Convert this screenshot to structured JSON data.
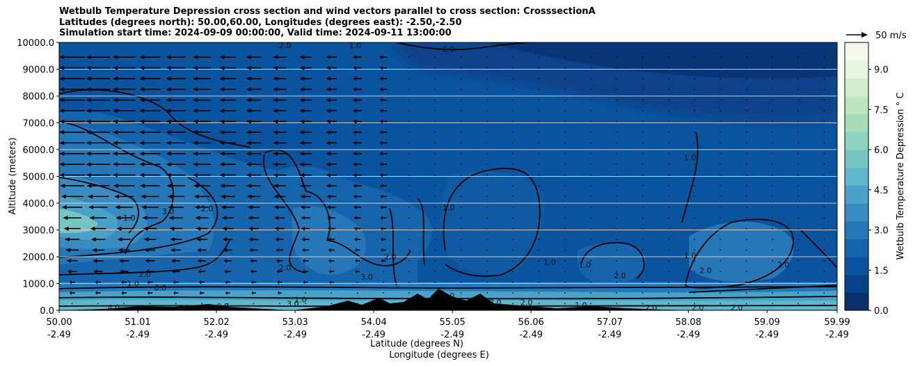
{
  "title": {
    "line1": "Wetbulb Temperature Depression cross section and wind vectors parallel to cross section: CrosssectionA",
    "line2": "Latitudes (degrees north): 50.00,60.00, Longitudes (degrees east): -2.50,-2.50",
    "line3": "Simulation start time: 2024-09-09 00:00:00, Valid time: 2024-09-11 13:00:00"
  },
  "quiver_key": {
    "label": "50 m/s"
  },
  "colorbar": {
    "label": "Wetbulb Temperature Depression ° C",
    "ticks": [
      "0.0",
      "1.5",
      "3.0",
      "4.5",
      "6.0",
      "7.5",
      "9.0"
    ],
    "range": [
      0,
      10
    ],
    "colors_low_to_high": [
      "#08306b",
      "#08438a",
      "#0a539e",
      "#1664ab",
      "#2677b8",
      "#3a8bc2",
      "#4ba2c9",
      "#60b6cb",
      "#75c5c3",
      "#8dd3be",
      "#a6dcb6",
      "#bde5be",
      "#d3eece",
      "#e5f5df",
      "#f5fbec"
    ]
  },
  "chart_data": {
    "type": "heatmap",
    "subtype": "filled contour cross-section with wind vectors and contour lines",
    "title": "Wetbulb Temperature Depression cross section and wind vectors parallel to cross section: CrosssectionA",
    "xlabel_line1": "Latitude (degrees N)",
    "xlabel_line2": "Longitude (degrees E)",
    "ylabel": "Altitude (meters)",
    "x_ticks_lat": [
      "50.00",
      "51.01",
      "52.02",
      "53.03",
      "54.04",
      "55.05",
      "56.06",
      "57.07",
      "58.08",
      "59.09",
      "59.99"
    ],
    "x_ticks_lon": [
      "-2.49",
      "-2.49",
      "-2.49",
      "-2.49",
      "-2.49",
      "-2.49",
      "-2.49",
      "-2.49",
      "-2.49",
      "-2.49",
      "-2.49"
    ],
    "y_ticks": [
      "0.0",
      "1000.0",
      "2000.0",
      "3000.0",
      "4000.0",
      "5000.0",
      "6000.0",
      "7000.0",
      "8000.0",
      "9000.0",
      "10000.0"
    ],
    "xlim": [
      50.0,
      59.99
    ],
    "ylim": [
      0,
      10000
    ],
    "grid": "horizontal lines",
    "colorbar_range": [
      0,
      10
    ],
    "contour_levels_labeled": [
      "1.0",
      "2.0",
      "3.0",
      "4.0"
    ],
    "contour_labels": [
      {
        "text": "2.0",
        "lat": 52.9,
        "alt": 9900
      },
      {
        "text": "1.0",
        "lat": 53.8,
        "alt": 9900
      },
      {
        "text": "1.0",
        "lat": 55.0,
        "alt": 9750
      },
      {
        "text": "1.0",
        "lat": 58.1,
        "alt": 5700
      },
      {
        "text": "1.0",
        "lat": 55.0,
        "alt": 3850
      },
      {
        "text": "3.0",
        "lat": 51.4,
        "alt": 3700
      },
      {
        "text": "2.0",
        "lat": 51.9,
        "alt": 3800
      },
      {
        "text": "1.0",
        "lat": 50.9,
        "alt": 3450
      },
      {
        "text": "2.0",
        "lat": 52.9,
        "alt": 1600
      },
      {
        "text": "2.0",
        "lat": 54.25,
        "alt": 2000
      },
      {
        "text": "3.0",
        "lat": 53.95,
        "alt": 1250
      },
      {
        "text": "2.0",
        "lat": 51.1,
        "alt": 1350
      },
      {
        "text": "1.0",
        "lat": 50.95,
        "alt": 1000
      },
      {
        "text": "0.0",
        "lat": 51.3,
        "alt": 850
      },
      {
        "text": "1.0",
        "lat": 56.3,
        "alt": 1800
      },
      {
        "text": "1.0",
        "lat": 56.75,
        "alt": 1700
      },
      {
        "text": "2.0",
        "lat": 57.2,
        "alt": 1300
      },
      {
        "text": "1.0",
        "lat": 58.1,
        "alt": 2050
      },
      {
        "text": "2.0",
        "lat": 58.3,
        "alt": 1500
      },
      {
        "text": "2.0",
        "lat": 59.3,
        "alt": 1700
      },
      {
        "text": "1.0",
        "lat": 53.1,
        "alt": 400
      },
      {
        "text": "3.0",
        "lat": 53.0,
        "alt": 250
      },
      {
        "text": "1.0",
        "lat": 55.0,
        "alt": 550
      },
      {
        "text": "2.0",
        "lat": 55.6,
        "alt": 300
      },
      {
        "text": "2.0",
        "lat": 56.0,
        "alt": 300
      },
      {
        "text": "1.0",
        "lat": 56.7,
        "alt": 200
      },
      {
        "text": "2.0",
        "lat": 57.6,
        "alt": 100
      },
      {
        "text": "2.0",
        "lat": 58.2,
        "alt": 100
      },
      {
        "text": "2.0",
        "lat": 58.7,
        "alt": 100
      },
      {
        "text": "4.0",
        "lat": 50.7,
        "alt": 100
      },
      {
        "text": "4.0",
        "lat": 51.6,
        "alt": 100
      },
      {
        "text": "0.0",
        "lat": 52.1,
        "alt": 150
      }
    ]
  }
}
